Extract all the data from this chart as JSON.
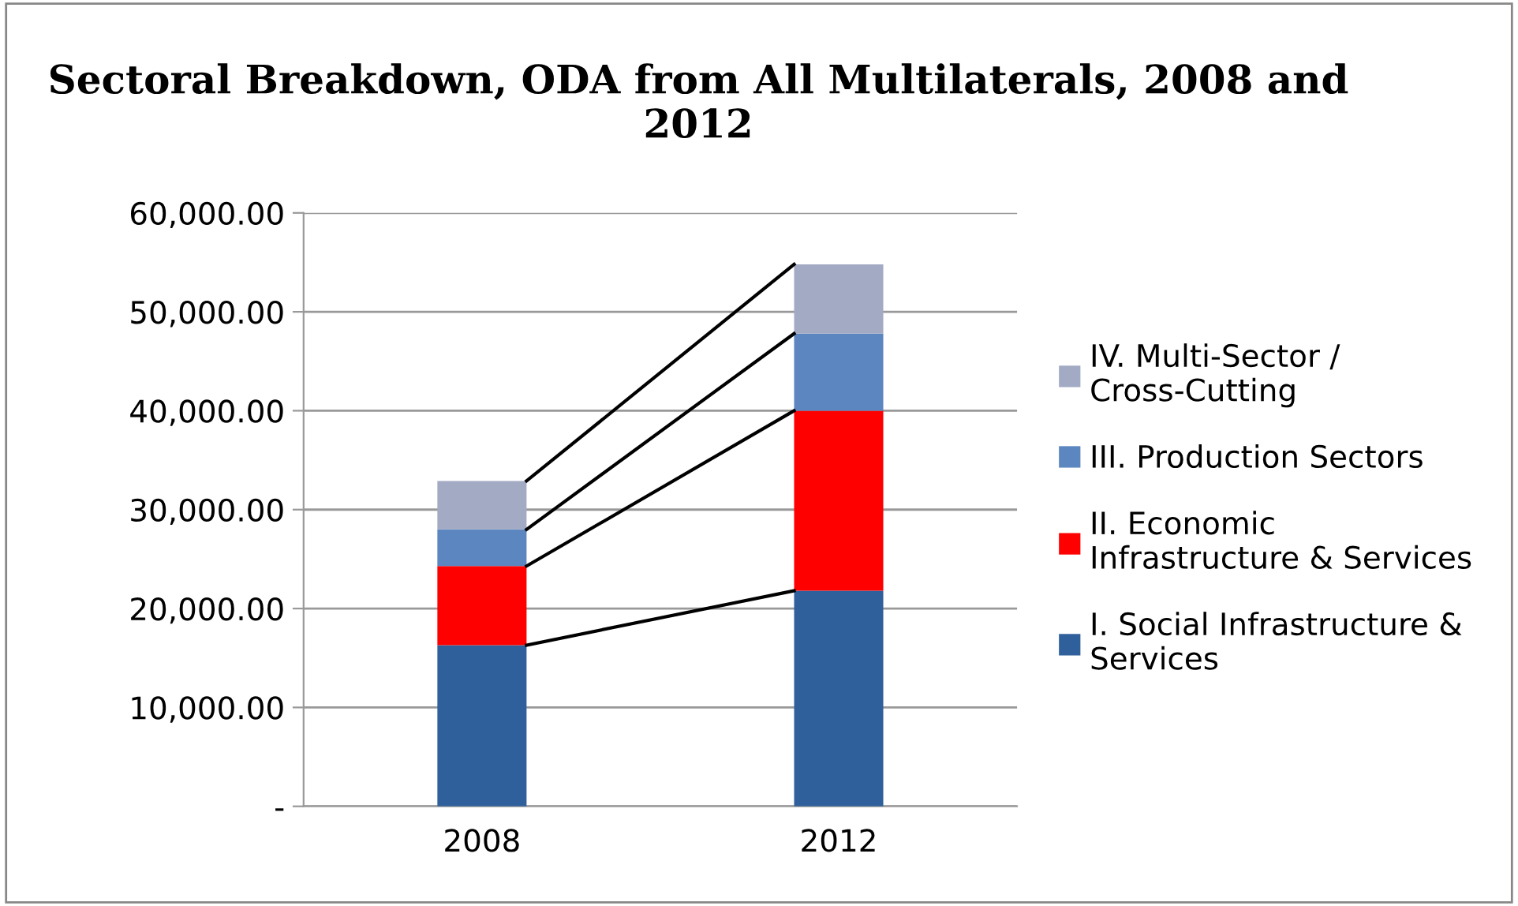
{
  "chart_data": {
    "type": "bar",
    "title": "Sectoral Breakdown, ODA from All Multilaterals, 2008 and 2012",
    "categories": [
      "2008",
      "2012"
    ],
    "stacked": true,
    "series": [
      {
        "name": "I. Social Infrastructure & Services",
        "color": "#2f609b",
        "values": [
          16300,
          21800
        ]
      },
      {
        "name": "II. Economic Infrastructure & Services",
        "color": "#ff0000",
        "values": [
          8000,
          18200
        ]
      },
      {
        "name": "III. Production Sectors",
        "color": "#5b86c0",
        "values": [
          3700,
          7800
        ]
      },
      {
        "name": "IV. Multi-Sector / Cross-Cutting",
        "color": "#a2abc3",
        "values": [
          4900,
          7000
        ]
      }
    ],
    "ylim": [
      0,
      60000
    ],
    "yticks": [
      {
        "value": 0,
        "label": "-"
      },
      {
        "value": 10000,
        "label": "10,000.00"
      },
      {
        "value": 20000,
        "label": "20,000.00"
      },
      {
        "value": 30000,
        "label": "30,000.00"
      },
      {
        "value": 40000,
        "label": "40,000.00"
      },
      {
        "value": 50000,
        "label": "50,000.00"
      },
      {
        "value": 60000,
        "label": "60,000.00"
      }
    ],
    "grid": "y",
    "legend": "right"
  }
}
